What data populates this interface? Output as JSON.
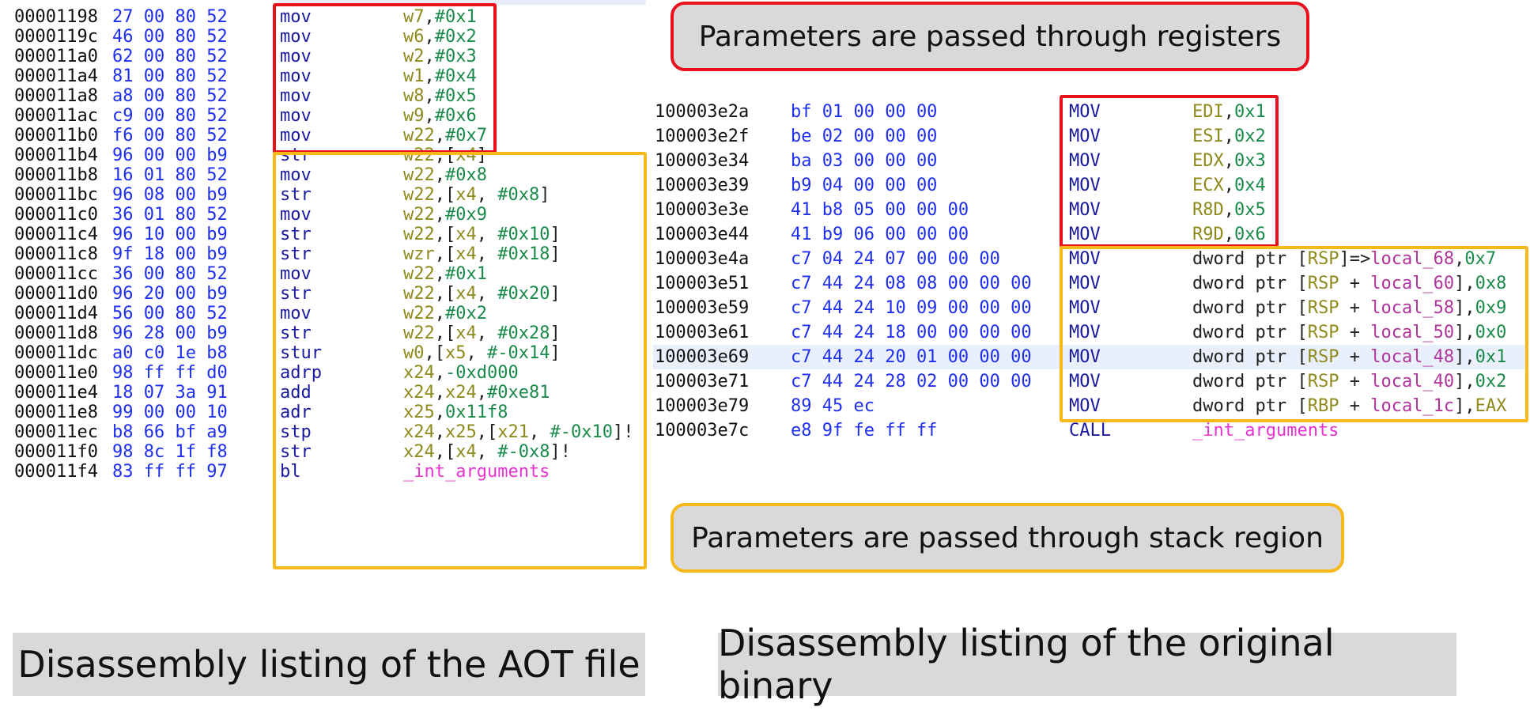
{
  "left_listing": [
    {
      "addr": "00001198",
      "bytes": "27 00 80 52",
      "mn": "mov",
      "op": [
        [
          "reg",
          "w7"
        ],
        [
          "tx",
          ","
        ],
        [
          "num",
          "#0x1"
        ]
      ]
    },
    {
      "addr": "0000119c",
      "bytes": "46 00 80 52",
      "mn": "mov",
      "op": [
        [
          "reg",
          "w6"
        ],
        [
          "tx",
          ","
        ],
        [
          "num",
          "#0x2"
        ]
      ]
    },
    {
      "addr": "000011a0",
      "bytes": "62 00 80 52",
      "mn": "mov",
      "op": [
        [
          "reg",
          "w2"
        ],
        [
          "tx",
          ","
        ],
        [
          "num",
          "#0x3"
        ]
      ]
    },
    {
      "addr": "000011a4",
      "bytes": "81 00 80 52",
      "mn": "mov",
      "op": [
        [
          "reg",
          "w1"
        ],
        [
          "tx",
          ","
        ],
        [
          "num",
          "#0x4"
        ]
      ]
    },
    {
      "addr": "000011a8",
      "bytes": "a8 00 80 52",
      "mn": "mov",
      "op": [
        [
          "reg",
          "w8"
        ],
        [
          "tx",
          ","
        ],
        [
          "num",
          "#0x5"
        ]
      ]
    },
    {
      "addr": "000011ac",
      "bytes": "c9 00 80 52",
      "mn": "mov",
      "op": [
        [
          "reg",
          "w9"
        ],
        [
          "tx",
          ","
        ],
        [
          "num",
          "#0x6"
        ]
      ]
    },
    {
      "addr": "000011b0",
      "bytes": "f6 00 80 52",
      "mn": "mov",
      "op": [
        [
          "reg",
          "w22"
        ],
        [
          "tx",
          ","
        ],
        [
          "num",
          "#0x7"
        ]
      ]
    },
    {
      "addr": "000011b4",
      "bytes": "96 00 00 b9",
      "mn": "str",
      "op": [
        [
          "reg",
          "w22"
        ],
        [
          "tx",
          ",["
        ],
        [
          "reg",
          "x4"
        ],
        [
          "tx",
          "]"
        ]
      ]
    },
    {
      "addr": "000011b8",
      "bytes": "16 01 80 52",
      "mn": "mov",
      "op": [
        [
          "reg",
          "w22"
        ],
        [
          "tx",
          ","
        ],
        [
          "num",
          "#0x8"
        ]
      ]
    },
    {
      "addr": "000011bc",
      "bytes": "96 08 00 b9",
      "mn": "str",
      "op": [
        [
          "reg",
          "w22"
        ],
        [
          "tx",
          ",["
        ],
        [
          "reg",
          "x4"
        ],
        [
          "tx",
          ", "
        ],
        [
          "num",
          "#0x8"
        ],
        [
          "tx",
          "]"
        ]
      ]
    },
    {
      "addr": "000011c0",
      "bytes": "36 01 80 52",
      "mn": "mov",
      "op": [
        [
          "reg",
          "w22"
        ],
        [
          "tx",
          ","
        ],
        [
          "num",
          "#0x9"
        ]
      ]
    },
    {
      "addr": "000011c4",
      "bytes": "96 10 00 b9",
      "mn": "str",
      "op": [
        [
          "reg",
          "w22"
        ],
        [
          "tx",
          ",["
        ],
        [
          "reg",
          "x4"
        ],
        [
          "tx",
          ", "
        ],
        [
          "num",
          "#0x10"
        ],
        [
          "tx",
          "]"
        ]
      ]
    },
    {
      "addr": "000011c8",
      "bytes": "9f 18 00 b9",
      "mn": "str",
      "op": [
        [
          "reg",
          "wzr"
        ],
        [
          "tx",
          ",["
        ],
        [
          "reg",
          "x4"
        ],
        [
          "tx",
          ", "
        ],
        [
          "num",
          "#0x18"
        ],
        [
          "tx",
          "]"
        ]
      ]
    },
    {
      "addr": "000011cc",
      "bytes": "36 00 80 52",
      "mn": "mov",
      "op": [
        [
          "reg",
          "w22"
        ],
        [
          "tx",
          ","
        ],
        [
          "num",
          "#0x1"
        ]
      ]
    },
    {
      "addr": "000011d0",
      "bytes": "96 20 00 b9",
      "mn": "str",
      "op": [
        [
          "reg",
          "w22"
        ],
        [
          "tx",
          ",["
        ],
        [
          "reg",
          "x4"
        ],
        [
          "tx",
          ", "
        ],
        [
          "num",
          "#0x20"
        ],
        [
          "tx",
          "]"
        ]
      ]
    },
    {
      "addr": "000011d4",
      "bytes": "56 00 80 52",
      "mn": "mov",
      "op": [
        [
          "reg",
          "w22"
        ],
        [
          "tx",
          ","
        ],
        [
          "num",
          "#0x2"
        ]
      ]
    },
    {
      "addr": "000011d8",
      "bytes": "96 28 00 b9",
      "mn": "str",
      "op": [
        [
          "reg",
          "w22"
        ],
        [
          "tx",
          ",["
        ],
        [
          "reg",
          "x4"
        ],
        [
          "tx",
          ", "
        ],
        [
          "num",
          "#0x28"
        ],
        [
          "tx",
          "]"
        ]
      ]
    },
    {
      "addr": "000011dc",
      "bytes": "a0 c0 1e b8",
      "mn": "stur",
      "op": [
        [
          "reg",
          "w0"
        ],
        [
          "tx",
          ",["
        ],
        [
          "reg",
          "x5"
        ],
        [
          "tx",
          ", "
        ],
        [
          "num",
          "#-0x14"
        ],
        [
          "tx",
          "]"
        ]
      ]
    },
    {
      "addr": "000011e0",
      "bytes": "98 ff ff d0",
      "mn": "adrp",
      "op": [
        [
          "reg",
          "x24"
        ],
        [
          "tx",
          ","
        ],
        [
          "num",
          "-0xd000"
        ]
      ]
    },
    {
      "addr": "000011e4",
      "bytes": "18 07 3a 91",
      "mn": "add",
      "op": [
        [
          "reg",
          "x24"
        ],
        [
          "tx",
          ","
        ],
        [
          "reg",
          "x24"
        ],
        [
          "tx",
          ","
        ],
        [
          "num",
          "#0xe81"
        ]
      ]
    },
    {
      "addr": "000011e8",
      "bytes": "99 00 00 10",
      "mn": "adr",
      "op": [
        [
          "reg",
          "x25"
        ],
        [
          "tx",
          ","
        ],
        [
          "num",
          "0x11f8"
        ]
      ]
    },
    {
      "addr": "000011ec",
      "bytes": "b8 66 bf a9",
      "mn": "stp",
      "op": [
        [
          "reg",
          "x24"
        ],
        [
          "tx",
          ","
        ],
        [
          "reg",
          "x25"
        ],
        [
          "tx",
          ",["
        ],
        [
          "reg",
          "x21"
        ],
        [
          "tx",
          ", "
        ],
        [
          "num",
          "#-0x10"
        ],
        [
          "tx",
          "]!"
        ]
      ]
    },
    {
      "addr": "000011f0",
      "bytes": "98 8c 1f f8",
      "mn": "str",
      "op": [
        [
          "reg",
          "x24"
        ],
        [
          "tx",
          ",["
        ],
        [
          "reg",
          "x4"
        ],
        [
          "tx",
          ", "
        ],
        [
          "num",
          "#-0x8"
        ],
        [
          "tx",
          "]!"
        ]
      ]
    },
    {
      "addr": "000011f4",
      "bytes": "83 ff ff 97",
      "mn": "bl",
      "op": [
        [
          "fn",
          "_int_arguments"
        ]
      ]
    }
  ],
  "right_listing": [
    {
      "addr": "100003e2a",
      "bytes": "bf 01 00 00 00",
      "mn": "MOV",
      "op": [
        [
          "reg",
          "EDI"
        ],
        [
          "tx",
          ","
        ],
        [
          "num",
          "0x1"
        ]
      ]
    },
    {
      "addr": "100003e2f",
      "bytes": "be 02 00 00 00",
      "mn": "MOV",
      "op": [
        [
          "reg",
          "ESI"
        ],
        [
          "tx",
          ","
        ],
        [
          "num",
          "0x2"
        ]
      ]
    },
    {
      "addr": "100003e34",
      "bytes": "ba 03 00 00 00",
      "mn": "MOV",
      "op": [
        [
          "reg",
          "EDX"
        ],
        [
          "tx",
          ","
        ],
        [
          "num",
          "0x3"
        ]
      ]
    },
    {
      "addr": "100003e39",
      "bytes": "b9 04 00 00 00",
      "mn": "MOV",
      "op": [
        [
          "reg",
          "ECX"
        ],
        [
          "tx",
          ","
        ],
        [
          "num",
          "0x4"
        ]
      ]
    },
    {
      "addr": "100003e3e",
      "bytes": "41 b8 05 00 00 00",
      "mn": "MOV",
      "op": [
        [
          "reg",
          "R8D"
        ],
        [
          "tx",
          ","
        ],
        [
          "num",
          "0x5"
        ]
      ]
    },
    {
      "addr": "100003e44",
      "bytes": "41 b9 06 00 00 00",
      "mn": "MOV",
      "op": [
        [
          "reg",
          "R9D"
        ],
        [
          "tx",
          ","
        ],
        [
          "num",
          "0x6"
        ]
      ]
    },
    {
      "addr": "100003e4a",
      "bytes": "c7 04 24 07 00 00 00",
      "mn": "MOV",
      "op": [
        [
          "tx",
          "dword ptr ["
        ],
        [
          "reg",
          "RSP"
        ],
        [
          "tx",
          "]=>"
        ],
        [
          "loc",
          "local_68"
        ],
        [
          "tx",
          ","
        ],
        [
          "num",
          "0x7"
        ]
      ]
    },
    {
      "addr": "100003e51",
      "bytes": "c7 44 24 08 08 00 00 00",
      "mn": "MOV",
      "op": [
        [
          "tx",
          "dword ptr ["
        ],
        [
          "reg",
          "RSP"
        ],
        [
          "tx",
          " + "
        ],
        [
          "loc",
          "local_60"
        ],
        [
          "tx",
          "],"
        ],
        [
          "num",
          "0x8"
        ]
      ]
    },
    {
      "addr": "100003e59",
      "bytes": "c7 44 24 10 09 00 00 00",
      "mn": "MOV",
      "op": [
        [
          "tx",
          "dword ptr ["
        ],
        [
          "reg",
          "RSP"
        ],
        [
          "tx",
          " + "
        ],
        [
          "loc",
          "local_58"
        ],
        [
          "tx",
          "],"
        ],
        [
          "num",
          "0x9"
        ]
      ]
    },
    {
      "addr": "100003e61",
      "bytes": "c7 44 24 18 00 00 00 00",
      "mn": "MOV",
      "op": [
        [
          "tx",
          "dword ptr ["
        ],
        [
          "reg",
          "RSP"
        ],
        [
          "tx",
          " + "
        ],
        [
          "loc",
          "local_50"
        ],
        [
          "tx",
          "],"
        ],
        [
          "num",
          "0x0"
        ]
      ]
    },
    {
      "addr": "100003e69",
      "bytes": "c7 44 24 20 01 00 00 00",
      "mn": "MOV",
      "op": [
        [
          "tx",
          "dword ptr ["
        ],
        [
          "reg",
          "RSP"
        ],
        [
          "tx",
          " + "
        ],
        [
          "loc",
          "local_48"
        ],
        [
          "tx",
          "],"
        ],
        [
          "num",
          "0x1"
        ]
      ],
      "highlight": true
    },
    {
      "addr": "100003e71",
      "bytes": "c7 44 24 28 02 00 00 00",
      "mn": "MOV",
      "op": [
        [
          "tx",
          "dword ptr ["
        ],
        [
          "reg",
          "RSP"
        ],
        [
          "tx",
          " + "
        ],
        [
          "loc",
          "local_40"
        ],
        [
          "tx",
          "],"
        ],
        [
          "num",
          "0x2"
        ]
      ]
    },
    {
      "addr": "100003e79",
      "bytes": "89 45 ec",
      "mn": "MOV",
      "op": [
        [
          "tx",
          "dword ptr ["
        ],
        [
          "reg",
          "RBP"
        ],
        [
          "tx",
          " + "
        ],
        [
          "loc",
          "local_1c"
        ],
        [
          "tx",
          "],"
        ],
        [
          "reg",
          "EAX"
        ]
      ]
    },
    {
      "addr": "100003e7c",
      "bytes": "e8 9f fe ff ff",
      "mn": "CALL",
      "op": [
        [
          "fn",
          "_int_arguments"
        ]
      ]
    }
  ],
  "callouts": {
    "registers": "Parameters are passed through registers",
    "stack": "Parameters are passed through stack region"
  },
  "captions": {
    "left": "Disassembly listing of the AOT file",
    "right": "Disassembly listing of the original binary"
  },
  "colors": {
    "register_box": "#e8111d",
    "stack_box": "#f7b91a",
    "bytes": "#1f2ff0",
    "mnemonic": "#1a1a9e",
    "register": "#8f8a1c",
    "immediate": "#1a8a4a",
    "local_var": "#b0359a",
    "function": "#e633d2"
  }
}
